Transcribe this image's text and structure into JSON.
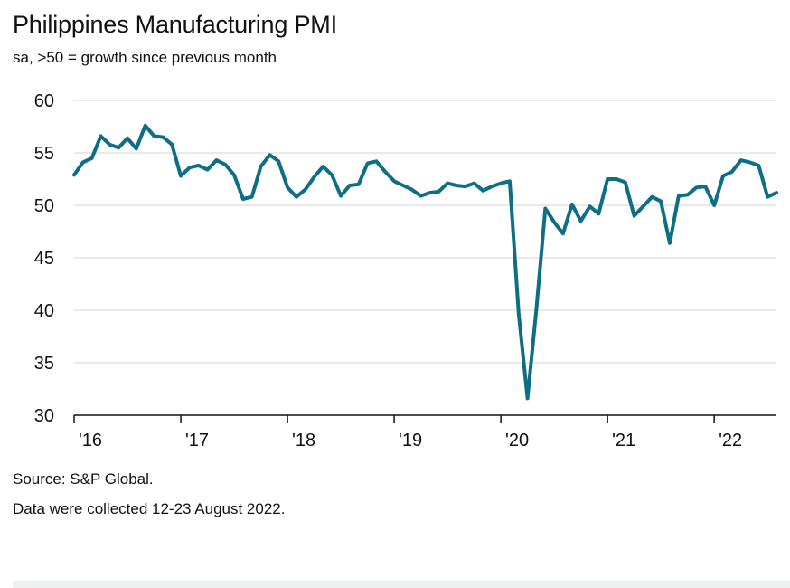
{
  "title": "Philippines Manufacturing PMI",
  "subtitle": "sa, >50 = growth since previous month",
  "footnote_source": "Source: S&P Global.",
  "footnote_collected": "Data were collected 12-23 August 2022.",
  "colors": {
    "line": "#0e6e86",
    "grid": "#d6d6d6",
    "axis": "#111111"
  },
  "chart_data": {
    "type": "line",
    "title": "Philippines Manufacturing PMI",
    "subtitle": "sa, >50 = growth since previous month",
    "xlabel": "",
    "ylabel": "",
    "ylim": [
      30,
      60
    ],
    "yticks": [
      30,
      35,
      40,
      45,
      50,
      55,
      60
    ],
    "xlim": [
      0,
      79
    ],
    "xticks": [
      {
        "pos": 0,
        "label": "'16"
      },
      {
        "pos": 12,
        "label": "'17"
      },
      {
        "pos": 24,
        "label": "'18"
      },
      {
        "pos": 36,
        "label": "'19"
      },
      {
        "pos": 48,
        "label": "'20"
      },
      {
        "pos": 60,
        "label": "'21"
      },
      {
        "pos": 72,
        "label": "'22"
      }
    ],
    "grid": true,
    "series": [
      {
        "name": "Philippines Manufacturing PMI",
        "x_start": "2016-01",
        "frequency": "monthly",
        "values": [
          52.9,
          54.1,
          54.5,
          56.6,
          55.8,
          55.5,
          56.4,
          55.4,
          57.6,
          56.6,
          56.5,
          55.8,
          52.8,
          53.6,
          53.8,
          53.4,
          54.3,
          53.9,
          52.9,
          50.6,
          50.8,
          53.7,
          54.8,
          54.2,
          51.7,
          50.8,
          51.5,
          52.7,
          53.7,
          52.9,
          50.9,
          51.9,
          52.0,
          54.0,
          54.2,
          53.2,
          52.3,
          51.9,
          51.5,
          50.9,
          51.2,
          51.3,
          52.1,
          51.9,
          51.8,
          52.1,
          51.4,
          51.8,
          52.1,
          52.3,
          39.7,
          31.6,
          40.1,
          49.7,
          48.4,
          47.3,
          50.1,
          48.5,
          49.9,
          49.2,
          52.5,
          52.5,
          52.2,
          49.0,
          49.9,
          50.8,
          50.4,
          46.4,
          50.9,
          51.0,
          51.7,
          51.8,
          50.0,
          52.8,
          53.2,
          54.3,
          54.1,
          53.8,
          50.8,
          51.2
        ]
      }
    ]
  }
}
